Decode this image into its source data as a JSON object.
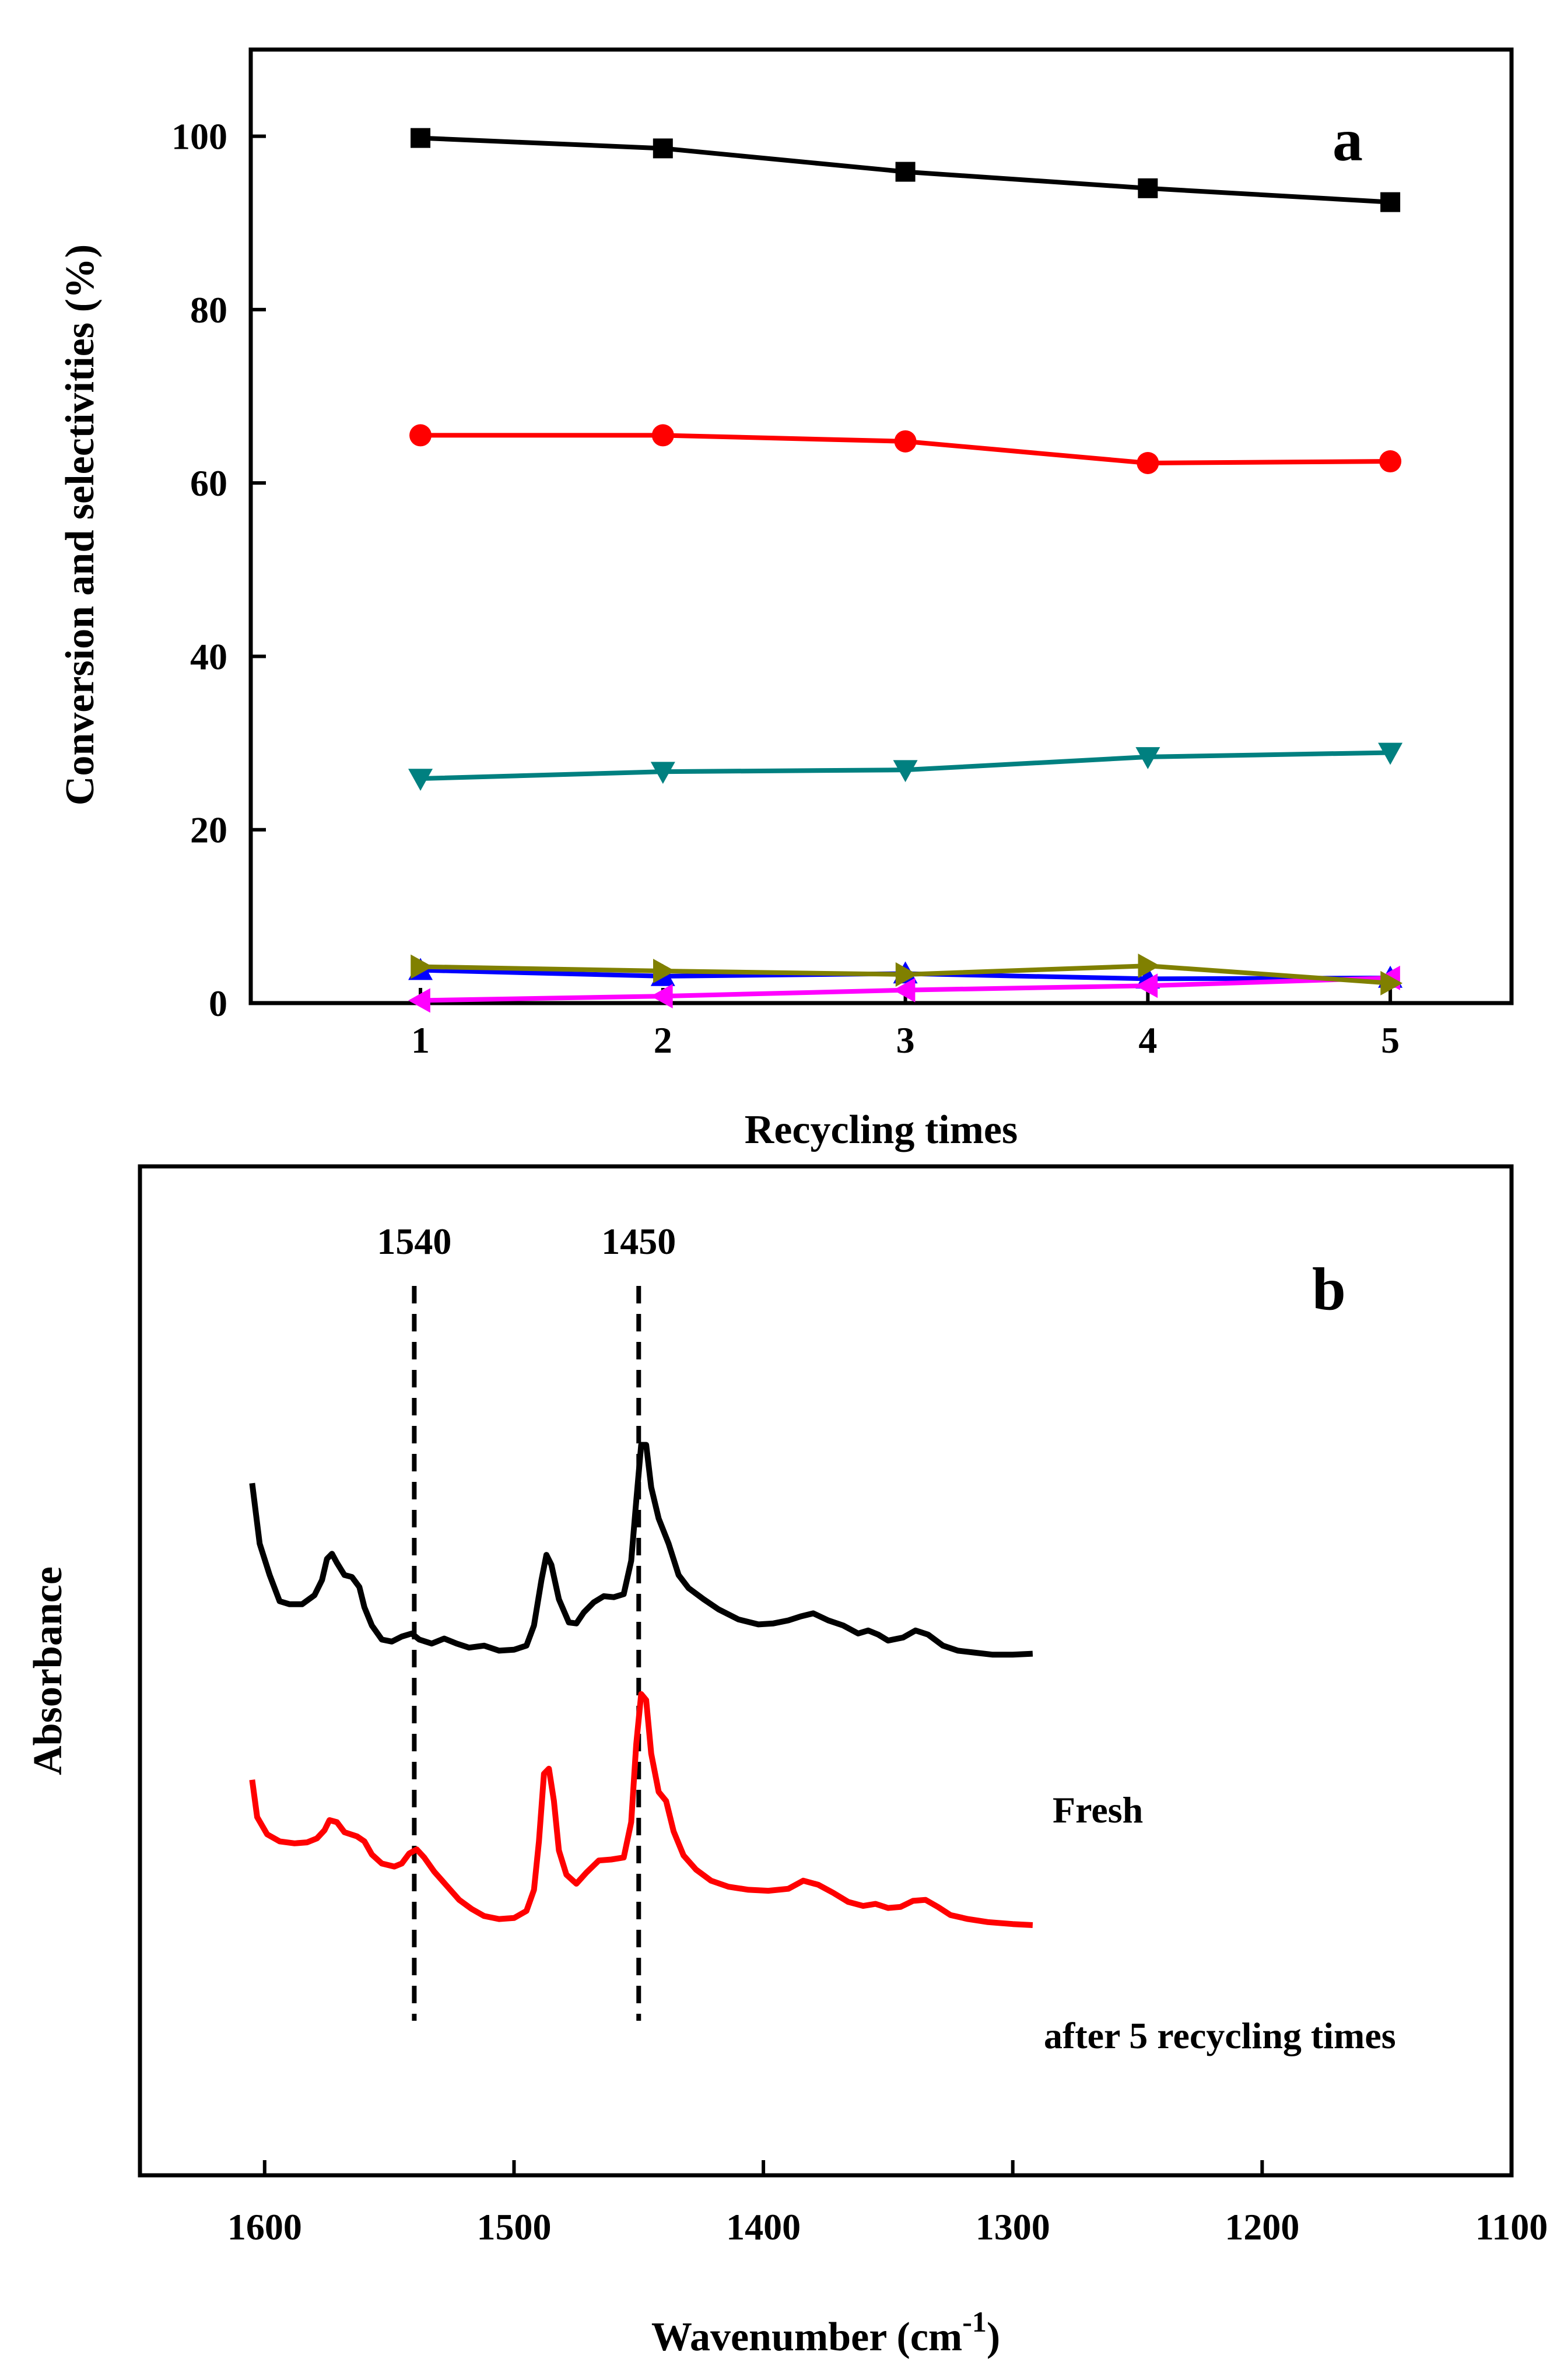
{
  "chart_data": [
    {
      "panel": "a",
      "type": "line",
      "xlabel": "Recycling times",
      "ylabel": "Conversion and selectivities (%)",
      "x": [
        1,
        2,
        3,
        4,
        5
      ],
      "xlim": [
        0.3,
        5.5
      ],
      "ylim": [
        0,
        110
      ],
      "xticks": [
        1,
        2,
        3,
        4,
        5
      ],
      "yticks": [
        0,
        20,
        40,
        60,
        80,
        100
      ],
      "series": [
        {
          "name": "black squares",
          "color": "#000000",
          "marker": "square",
          "values": [
            99.8,
            98.6,
            95.9,
            94.0,
            92.4
          ]
        },
        {
          "name": "red circles",
          "color": "#ff0000",
          "marker": "circle",
          "values": [
            65.5,
            65.5,
            64.8,
            62.3,
            62.5
          ]
        },
        {
          "name": "teal down triangles",
          "color": "#008080",
          "marker": "triangle-down",
          "values": [
            25.9,
            26.7,
            26.9,
            28.4,
            28.9
          ]
        },
        {
          "name": "blue up triangles",
          "color": "#0000ff",
          "marker": "triangle-up",
          "values": [
            3.8,
            3.1,
            3.4,
            2.8,
            2.9
          ]
        },
        {
          "name": "magenta left triangles",
          "color": "#ff00ff",
          "marker": "triangle-left",
          "values": [
            0.3,
            0.8,
            1.5,
            2.0,
            2.9
          ]
        },
        {
          "name": "olive right triangles",
          "color": "#808000",
          "marker": "triangle-right",
          "values": [
            4.2,
            3.7,
            3.3,
            4.3,
            2.3
          ]
        }
      ]
    },
    {
      "panel": "b",
      "type": "line",
      "xlabel_main": "Wavenumber (cm",
      "xlabel_sup": "-1",
      "xlabel_end": ")",
      "ylabel": "Absorbance",
      "xlim": [
        1650,
        1100
      ],
      "xticks": [
        1600,
        1500,
        1400,
        1300,
        1200,
        1100
      ],
      "ylim": [
        0,
        1
      ],
      "reference_lines": [
        {
          "label": "1540",
          "x": 1540
        },
        {
          "label": "1450",
          "x": 1450
        }
      ],
      "series": [
        {
          "name": "Fresh",
          "color": "#000000",
          "points": [
            [
              1605,
              0.686
            ],
            [
              1602,
              0.626
            ],
            [
              1598,
              0.595
            ],
            [
              1594,
              0.569
            ],
            [
              1590,
              0.566
            ],
            [
              1585,
              0.566
            ],
            [
              1580,
              0.575
            ],
            [
              1577,
              0.59
            ],
            [
              1575,
              0.611
            ],
            [
              1573,
              0.616
            ],
            [
              1571,
              0.607
            ],
            [
              1568,
              0.595
            ],
            [
              1565,
              0.593
            ],
            [
              1562,
              0.583
            ],
            [
              1560,
              0.563
            ],
            [
              1557,
              0.545
            ],
            [
              1553,
              0.531
            ],
            [
              1549,
              0.529
            ],
            [
              1545,
              0.534
            ],
            [
              1541,
              0.537
            ],
            [
              1538,
              0.531
            ],
            [
              1533,
              0.527
            ],
            [
              1528,
              0.532
            ],
            [
              1523,
              0.527
            ],
            [
              1518,
              0.523
            ],
            [
              1512,
              0.525
            ],
            [
              1506,
              0.52
            ],
            [
              1500,
              0.521
            ],
            [
              1495,
              0.525
            ],
            [
              1492,
              0.545
            ],
            [
              1489,
              0.59
            ],
            [
              1487,
              0.615
            ],
            [
              1485,
              0.605
            ],
            [
              1482,
              0.571
            ],
            [
              1478,
              0.548
            ],
            [
              1475,
              0.547
            ],
            [
              1472,
              0.558
            ],
            [
              1468,
              0.568
            ],
            [
              1464,
              0.574
            ],
            [
              1460,
              0.573
            ],
            [
              1456,
              0.576
            ],
            [
              1453,
              0.609
            ],
            [
              1451,
              0.668
            ],
            [
              1449,
              0.724
            ],
            [
              1447,
              0.724
            ],
            [
              1445,
              0.682
            ],
            [
              1442,
              0.651
            ],
            [
              1438,
              0.626
            ],
            [
              1434,
              0.595
            ],
            [
              1430,
              0.582
            ],
            [
              1424,
              0.571
            ],
            [
              1418,
              0.561
            ],
            [
              1410,
              0.551
            ],
            [
              1402,
              0.546
            ],
            [
              1396,
              0.547
            ],
            [
              1390,
              0.55
            ],
            [
              1385,
              0.554
            ],
            [
              1380,
              0.557
            ],
            [
              1374,
              0.55
            ],
            [
              1368,
              0.545
            ],
            [
              1362,
              0.537
            ],
            [
              1358,
              0.54
            ],
            [
              1354,
              0.536
            ],
            [
              1350,
              0.53
            ],
            [
              1344,
              0.533
            ],
            [
              1339,
              0.54
            ],
            [
              1334,
              0.536
            ],
            [
              1328,
              0.525
            ],
            [
              1322,
              0.52
            ],
            [
              1315,
              0.518
            ],
            [
              1308,
              0.516
            ],
            [
              1300,
              0.516
            ],
            [
              1292,
              0.517
            ]
          ]
        },
        {
          "name": "after 5 recycling times",
          "color": "#ff0000",
          "points": [
            [
              1605,
              0.392
            ],
            [
              1603,
              0.355
            ],
            [
              1599,
              0.338
            ],
            [
              1594,
              0.331
            ],
            [
              1588,
              0.329
            ],
            [
              1583,
              0.33
            ],
            [
              1579,
              0.334
            ],
            [
              1576,
              0.342
            ],
            [
              1574,
              0.352
            ],
            [
              1571,
              0.35
            ],
            [
              1568,
              0.34
            ],
            [
              1563,
              0.336
            ],
            [
              1560,
              0.331
            ],
            [
              1557,
              0.318
            ],
            [
              1553,
              0.309
            ],
            [
              1548,
              0.306
            ],
            [
              1545,
              0.309
            ],
            [
              1542,
              0.319
            ],
            [
              1539,
              0.323
            ],
            [
              1536,
              0.315
            ],
            [
              1532,
              0.301
            ],
            [
              1527,
              0.287
            ],
            [
              1522,
              0.273
            ],
            [
              1517,
              0.264
            ],
            [
              1512,
              0.257
            ],
            [
              1506,
              0.254
            ],
            [
              1500,
              0.255
            ],
            [
              1495,
              0.262
            ],
            [
              1492,
              0.283
            ],
            [
              1490,
              0.331
            ],
            [
              1488,
              0.398
            ],
            [
              1486,
              0.403
            ],
            [
              1484,
              0.371
            ],
            [
              1482,
              0.322
            ],
            [
              1479,
              0.298
            ],
            [
              1475,
              0.289
            ],
            [
              1471,
              0.3
            ],
            [
              1466,
              0.312
            ],
            [
              1461,
              0.313
            ],
            [
              1456,
              0.315
            ],
            [
              1453,
              0.35
            ],
            [
              1451,
              0.427
            ],
            [
              1449,
              0.477
            ],
            [
              1447,
              0.471
            ],
            [
              1445,
              0.418
            ],
            [
              1442,
              0.38
            ],
            [
              1439,
              0.371
            ],
            [
              1436,
              0.341
            ],
            [
              1432,
              0.317
            ],
            [
              1427,
              0.303
            ],
            [
              1421,
              0.292
            ],
            [
              1414,
              0.286
            ],
            [
              1406,
              0.283
            ],
            [
              1398,
              0.282
            ],
            [
              1390,
              0.284
            ],
            [
              1384,
              0.292
            ],
            [
              1378,
              0.288
            ],
            [
              1372,
              0.28
            ],
            [
              1366,
              0.271
            ],
            [
              1360,
              0.267
            ],
            [
              1355,
              0.269
            ],
            [
              1350,
              0.265
            ],
            [
              1345,
              0.266
            ],
            [
              1340,
              0.272
            ],
            [
              1335,
              0.273
            ],
            [
              1330,
              0.266
            ],
            [
              1325,
              0.258
            ],
            [
              1318,
              0.254
            ],
            [
              1310,
              0.251
            ],
            [
              1300,
              0.249
            ],
            [
              1292,
              0.248
            ]
          ]
        }
      ],
      "curve_labels": [
        "Fresh",
        "after 5 recycling times"
      ]
    }
  ]
}
